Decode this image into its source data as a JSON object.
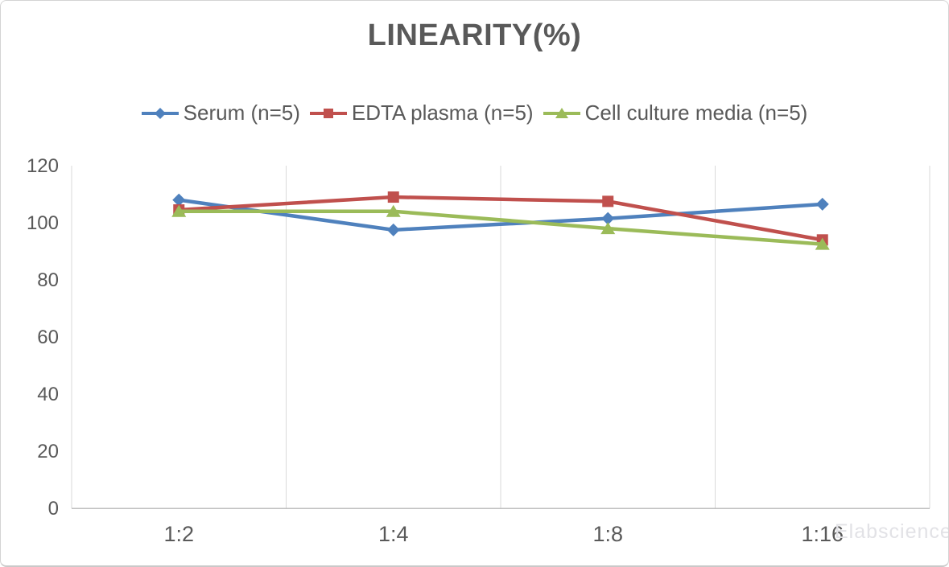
{
  "page": {
    "watermark": "Elabscience"
  },
  "chart_data": {
    "type": "line",
    "title": "LINEARITY(%)",
    "categories": [
      "1:2",
      "1:4",
      "1:8",
      "1:16"
    ],
    "series": [
      {
        "name": "Serum (n=5)",
        "color": "#4F81BD",
        "marker": "diamond",
        "values": [
          108,
          97.5,
          101.5,
          106.5
        ]
      },
      {
        "name": "EDTA plasma (n=5)",
        "color": "#C0504D",
        "marker": "square",
        "values": [
          104.5,
          109,
          107.5,
          94
        ]
      },
      {
        "name": "Cell culture media (n=5)",
        "color": "#9BBB59",
        "marker": "triangle",
        "values": [
          104,
          104,
          98,
          92.5
        ]
      }
    ],
    "ylim": [
      0,
      120
    ],
    "yticks": [
      0,
      20,
      40,
      60,
      80,
      100,
      120
    ],
    "xlabel": "",
    "ylabel": "",
    "grid": "vertical-only",
    "legend_position": "top",
    "axis_color": "#BFBFBF",
    "gridline_color": "#D9D9D9",
    "text_color": "#595959"
  }
}
